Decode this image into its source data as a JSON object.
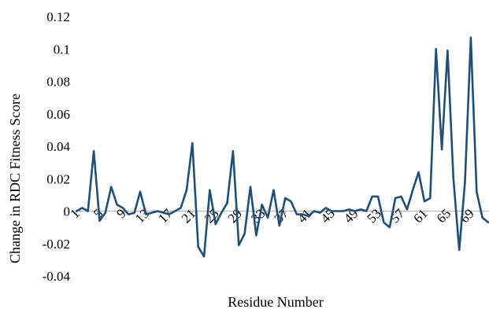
{
  "chart_data": {
    "type": "line",
    "xlabel": "Residue Number",
    "ylabel": "Change in RDC Fitness Score",
    "x_tick_labels": [
      "1",
      "5",
      "9",
      "13",
      "17",
      "21",
      "25",
      "29",
      "33",
      "37",
      "41",
      "45",
      "49",
      "53",
      "57",
      "61",
      "65",
      "69"
    ],
    "x_tick_step": 4,
    "y_tick_labels": [
      "-0.04",
      "-0.02",
      "0",
      "0.02",
      "0.04",
      "0.06",
      "0.08",
      "0.1",
      "0.12"
    ],
    "ylim": [
      -0.04,
      0.12
    ],
    "grid": false,
    "series_color": "#1f4e79",
    "series": [
      {
        "x": [
          1,
          2,
          3,
          4,
          5,
          6,
          7,
          8,
          9,
          10,
          11,
          12,
          13,
          14,
          15,
          16,
          17,
          18,
          19,
          20,
          21,
          22,
          23,
          24,
          25,
          26,
          27,
          28,
          29,
          30,
          31,
          32,
          33,
          34,
          35,
          36,
          37,
          38,
          39,
          40,
          41,
          42,
          43,
          44,
          45,
          46,
          47,
          48,
          49,
          50,
          51,
          52,
          53,
          54,
          55,
          56,
          57,
          58,
          59,
          60,
          61,
          62,
          63,
          64,
          65,
          66,
          67,
          68,
          69,
          70,
          71,
          72
        ],
        "values": [
          0,
          0.002,
          0,
          0.037,
          -0.006,
          -0.001,
          0.015,
          0.004,
          0.002,
          -0.002,
          -0.001,
          0.012,
          -0.002,
          -0.001,
          0,
          -0.001,
          -0.002,
          0,
          0.002,
          0.013,
          0.042,
          -0.022,
          -0.028,
          0.013,
          -0.008,
          -0.001,
          0.005,
          0.037,
          -0.021,
          -0.014,
          0.015,
          -0.015,
          0.004,
          -0.004,
          0.013,
          -0.009,
          0.008,
          0.006,
          -0.002,
          -0.002,
          -0.003,
          0,
          -0.001,
          0.002,
          0,
          0,
          0,
          0.001,
          0,
          0.001,
          0,
          0.009,
          0.009,
          -0.007,
          -0.01,
          0.008,
          0.009,
          0.001,
          0.013,
          0.024,
          0.006,
          0.008,
          0.1,
          0.038,
          0.099,
          0.02,
          -0.024,
          0.018,
          0.107,
          0.012,
          -0.004,
          -0.007
        ]
      }
    ]
  }
}
